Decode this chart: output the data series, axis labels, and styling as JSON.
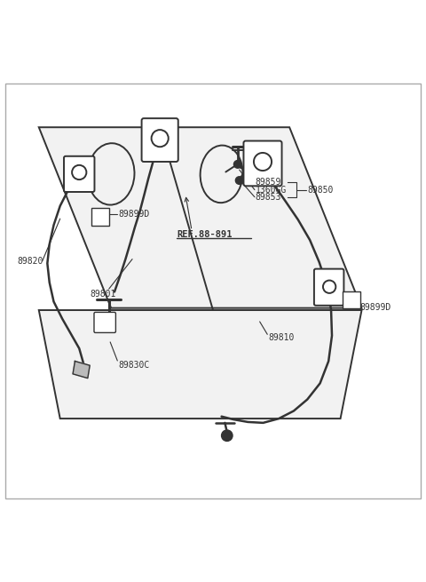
{
  "bg_color": "#ffffff",
  "line_color": "#333333",
  "label_color": "#333333",
  "figsize": [
    4.8,
    6.55
  ],
  "dpi": 100,
  "labels": {
    "89899D_left": "89899D",
    "89820": "89820",
    "89801": "89801",
    "89830C": "89830C",
    "89859": "89859",
    "1360GG": "1360GG",
    "89853": "89853",
    "89850": "89850",
    "REF": "REF.88-891",
    "89899D_right": "89899D",
    "89810": "89810"
  }
}
